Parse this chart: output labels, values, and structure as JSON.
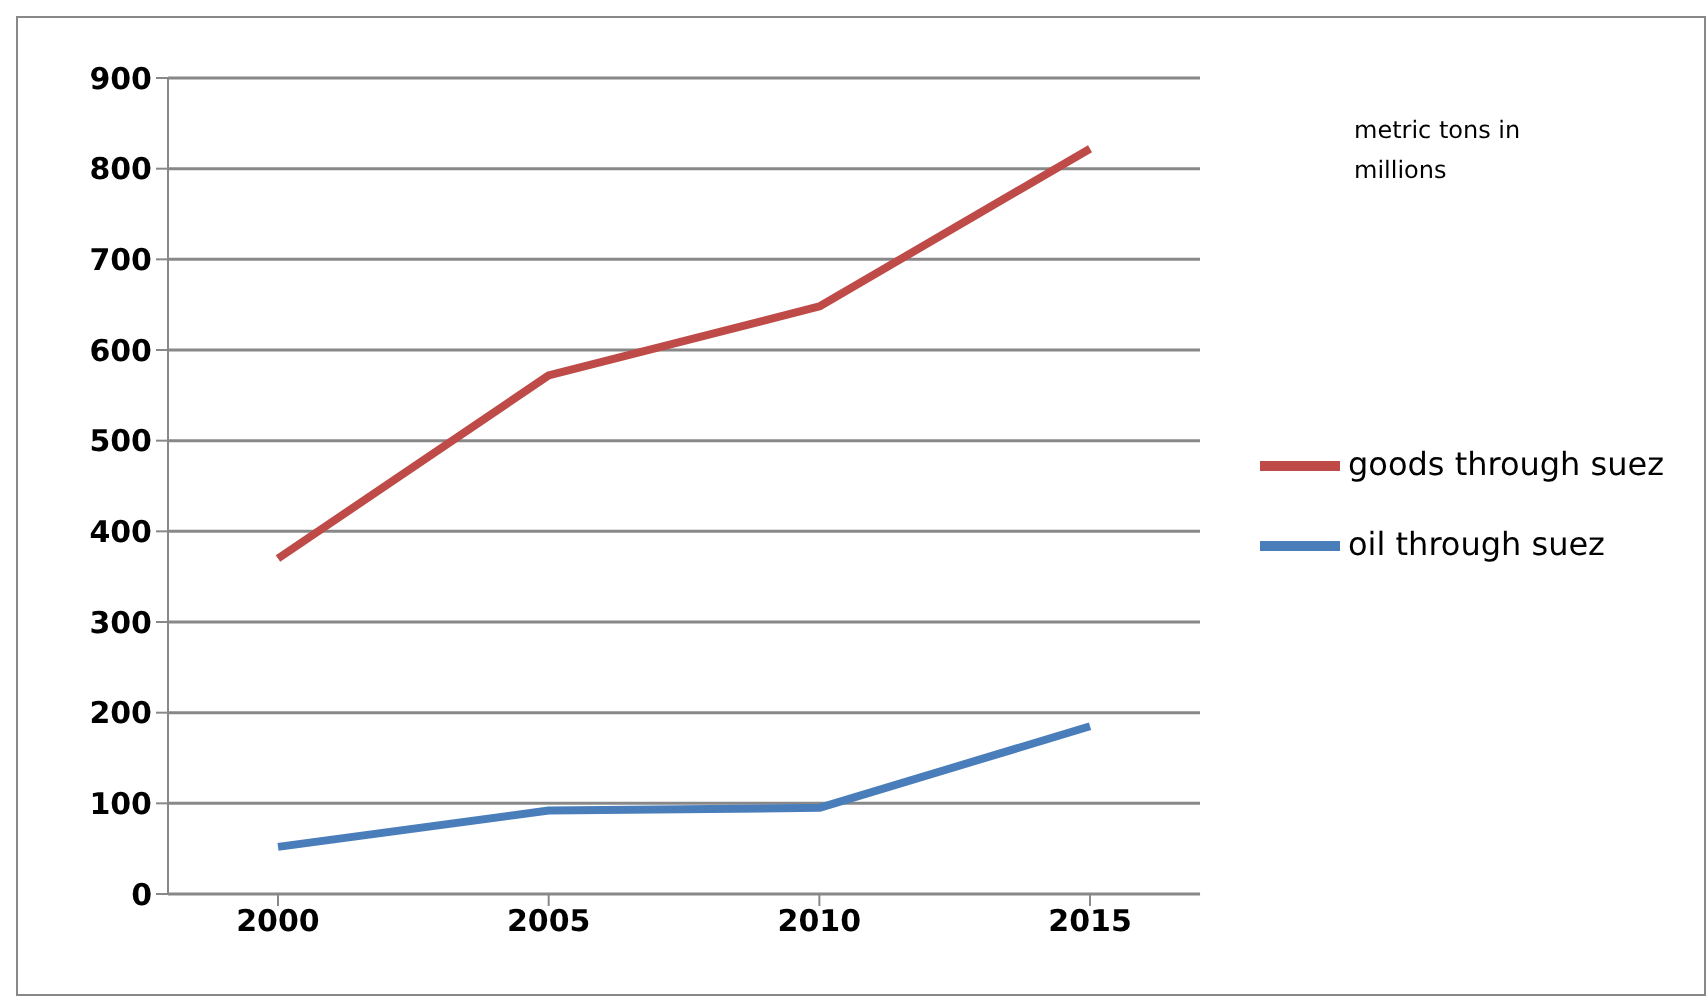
{
  "chart_data": {
    "type": "line",
    "categories": [
      "2000",
      "2005",
      "2010",
      "2015"
    ],
    "series": [
      {
        "name": "oil through suez",
        "color": "#4a7ebb",
        "values": [
          52,
          92,
          95,
          185
        ]
      },
      {
        "name": "goods through suez",
        "color": "#be4b48",
        "values": [
          370,
          572,
          648,
          822
        ]
      }
    ],
    "ylim": [
      0,
      900
    ],
    "yticks": [
      0,
      100,
      200,
      300,
      400,
      500,
      600,
      700,
      800,
      900
    ],
    "grid": "y",
    "legend": "right",
    "marker": "none",
    "annotations": [
      "metric tons in millions"
    ]
  }
}
